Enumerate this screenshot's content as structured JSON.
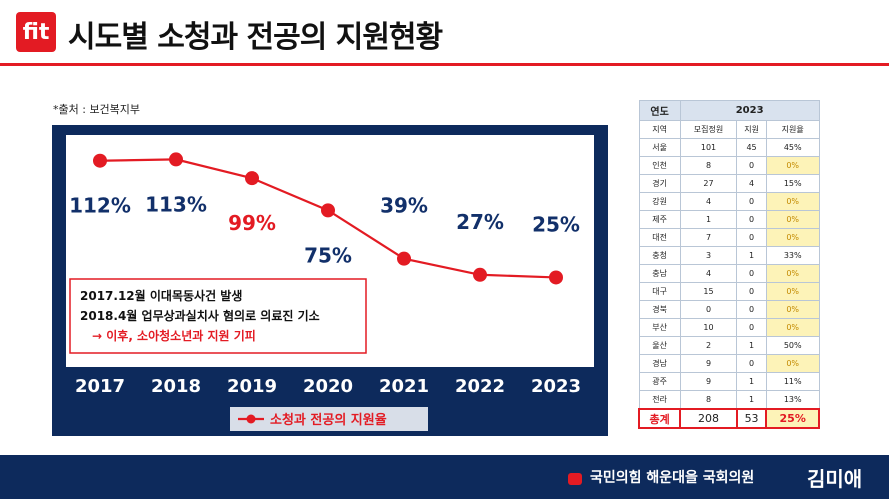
{
  "header": {
    "logo_text": "fit",
    "title": "시도별 소청과 전공의 지원현황"
  },
  "source": "*출처 : 보건복지부",
  "chart_data": {
    "type": "line",
    "categories": [
      "2017",
      "2018",
      "2019",
      "2020",
      "2021",
      "2022",
      "2023"
    ],
    "series": [
      {
        "name": "소청과 전공의 지원율",
        "values": [
          112,
          113,
          99,
          75,
          39,
          27,
          25
        ]
      }
    ],
    "data_labels": [
      "112%",
      "113%",
      "99%",
      "75%",
      "39%",
      "27%",
      "25%"
    ],
    "highlighted_label_index": 2,
    "ylim": [
      0,
      120
    ],
    "annotation": {
      "line1": "2017.12월 이대목동사건 발생",
      "line2": "2018.4월  업무상과실치사 혐의로 의료진 기소",
      "line3": "→ 이후, 소아청소년과 지원 기피"
    },
    "legend_position": "bottom-center",
    "colors": {
      "line": "#e31b23",
      "panel": "#0d2a5c",
      "label": "#12306a",
      "highlight": "#e31b23"
    }
  },
  "table": {
    "year_header_left": "연도",
    "year": "2023",
    "columns": [
      "지역",
      "모집정원",
      "지원",
      "지원율"
    ],
    "rows": [
      [
        "서울",
        "101",
        "45",
        "45%"
      ],
      [
        "인천",
        "8",
        "0",
        "0%"
      ],
      [
        "경기",
        "27",
        "4",
        "15%"
      ],
      [
        "강원",
        "4",
        "0",
        "0%"
      ],
      [
        "제주",
        "1",
        "0",
        "0%"
      ],
      [
        "대전",
        "7",
        "0",
        "0%"
      ],
      [
        "충청",
        "3",
        "1",
        "33%"
      ],
      [
        "충남",
        "4",
        "0",
        "0%"
      ],
      [
        "대구",
        "15",
        "0",
        "0%"
      ],
      [
        "경북",
        "0",
        "0",
        "0%"
      ],
      [
        "부산",
        "10",
        "0",
        "0%"
      ],
      [
        "울산",
        "2",
        "1",
        "50%"
      ],
      [
        "경남",
        "9",
        "0",
        "0%"
      ],
      [
        "광주",
        "9",
        "1",
        "11%"
      ],
      [
        "전라",
        "8",
        "1",
        "13%"
      ]
    ],
    "total": [
      "총계",
      "208",
      "53",
      "25%"
    ]
  },
  "footer": {
    "text": "국민의힘 해운대을 국회의원",
    "name": "김미애"
  }
}
